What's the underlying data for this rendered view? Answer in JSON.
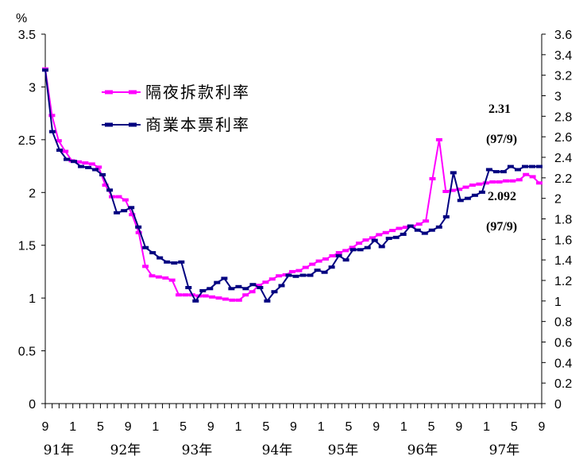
{
  "chart_data": {
    "type": "line",
    "unit_label": "%",
    "y_left": {
      "min": 0,
      "max": 3.5,
      "step": 0.5,
      "ticks": [
        "0",
        "0.5",
        "1",
        "1.5",
        "2",
        "2.5",
        "3",
        "3.5"
      ]
    },
    "y_right": {
      "min": 0,
      "max": 3.6,
      "step": 0.2,
      "ticks": [
        "0",
        "0.2",
        "0.4",
        "0.6",
        "0.8",
        "1",
        "1.2",
        "1.4",
        "1.6",
        "1.8",
        "2",
        "2.2",
        "2.4",
        "2.6",
        "2.8",
        "3",
        "3.2",
        "3.4",
        "3.6"
      ]
    },
    "x_month_labels": [
      "9",
      "1",
      "5",
      "9",
      "1",
      "5",
      "9",
      "1",
      "5",
      "9",
      "1",
      "5",
      "9",
      "1",
      "5",
      "9",
      "1",
      "5",
      "9"
    ],
    "x_year_labels": [
      "91年",
      "92年",
      "93年",
      "94年",
      "95年",
      "96年",
      "97年"
    ],
    "legend": [
      "隔夜拆款利率",
      "商業本票利率"
    ],
    "series": [
      {
        "name": "隔夜拆款利率",
        "color": "#ff00ff",
        "axis": "left",
        "values": [
          3.17,
          2.73,
          2.49,
          2.39,
          2.3,
          2.29,
          2.28,
          2.27,
          2.24,
          2.07,
          1.96,
          1.96,
          1.93,
          1.79,
          1.62,
          1.3,
          1.21,
          1.2,
          1.19,
          1.17,
          1.03,
          1.03,
          1.03,
          1.02,
          1.02,
          1.01,
          1.0,
          0.99,
          0.98,
          0.98,
          1.03,
          1.06,
          1.12,
          1.15,
          1.18,
          1.21,
          1.22,
          1.25,
          1.26,
          1.29,
          1.32,
          1.35,
          1.37,
          1.4,
          1.43,
          1.45,
          1.48,
          1.52,
          1.55,
          1.57,
          1.6,
          1.62,
          1.64,
          1.66,
          1.67,
          1.68,
          1.7,
          1.73,
          2.13,
          2.5,
          2.01,
          2.02,
          2.03,
          2.05,
          2.07,
          2.08,
          2.09,
          2.1,
          2.1,
          2.11,
          2.11,
          2.12,
          2.17,
          2.15,
          2.09
        ]
      },
      {
        "name": "商業本票利率",
        "color": "#000080",
        "axis": "right",
        "values": [
          3.25,
          2.65,
          2.47,
          2.38,
          2.36,
          2.31,
          2.3,
          2.28,
          2.23,
          2.08,
          1.86,
          1.88,
          1.91,
          1.72,
          1.52,
          1.47,
          1.42,
          1.38,
          1.37,
          1.38,
          1.13,
          1.0,
          1.1,
          1.12,
          1.18,
          1.22,
          1.12,
          1.14,
          1.12,
          1.16,
          1.13,
          1.0,
          1.09,
          1.15,
          1.25,
          1.24,
          1.25,
          1.25,
          1.3,
          1.28,
          1.33,
          1.44,
          1.4,
          1.5,
          1.5,
          1.52,
          1.59,
          1.53,
          1.61,
          1.62,
          1.65,
          1.73,
          1.69,
          1.66,
          1.69,
          1.72,
          1.82,
          2.25,
          1.98,
          2.0,
          2.03,
          2.06,
          2.28,
          2.26,
          2.26,
          2.31,
          2.28,
          2.31,
          2.31,
          2.31
        ]
      }
    ],
    "annotations": [
      {
        "text": "2.31",
        "sub": "(97/9)"
      },
      {
        "text": "2.092",
        "sub": "(97/9)"
      }
    ]
  }
}
